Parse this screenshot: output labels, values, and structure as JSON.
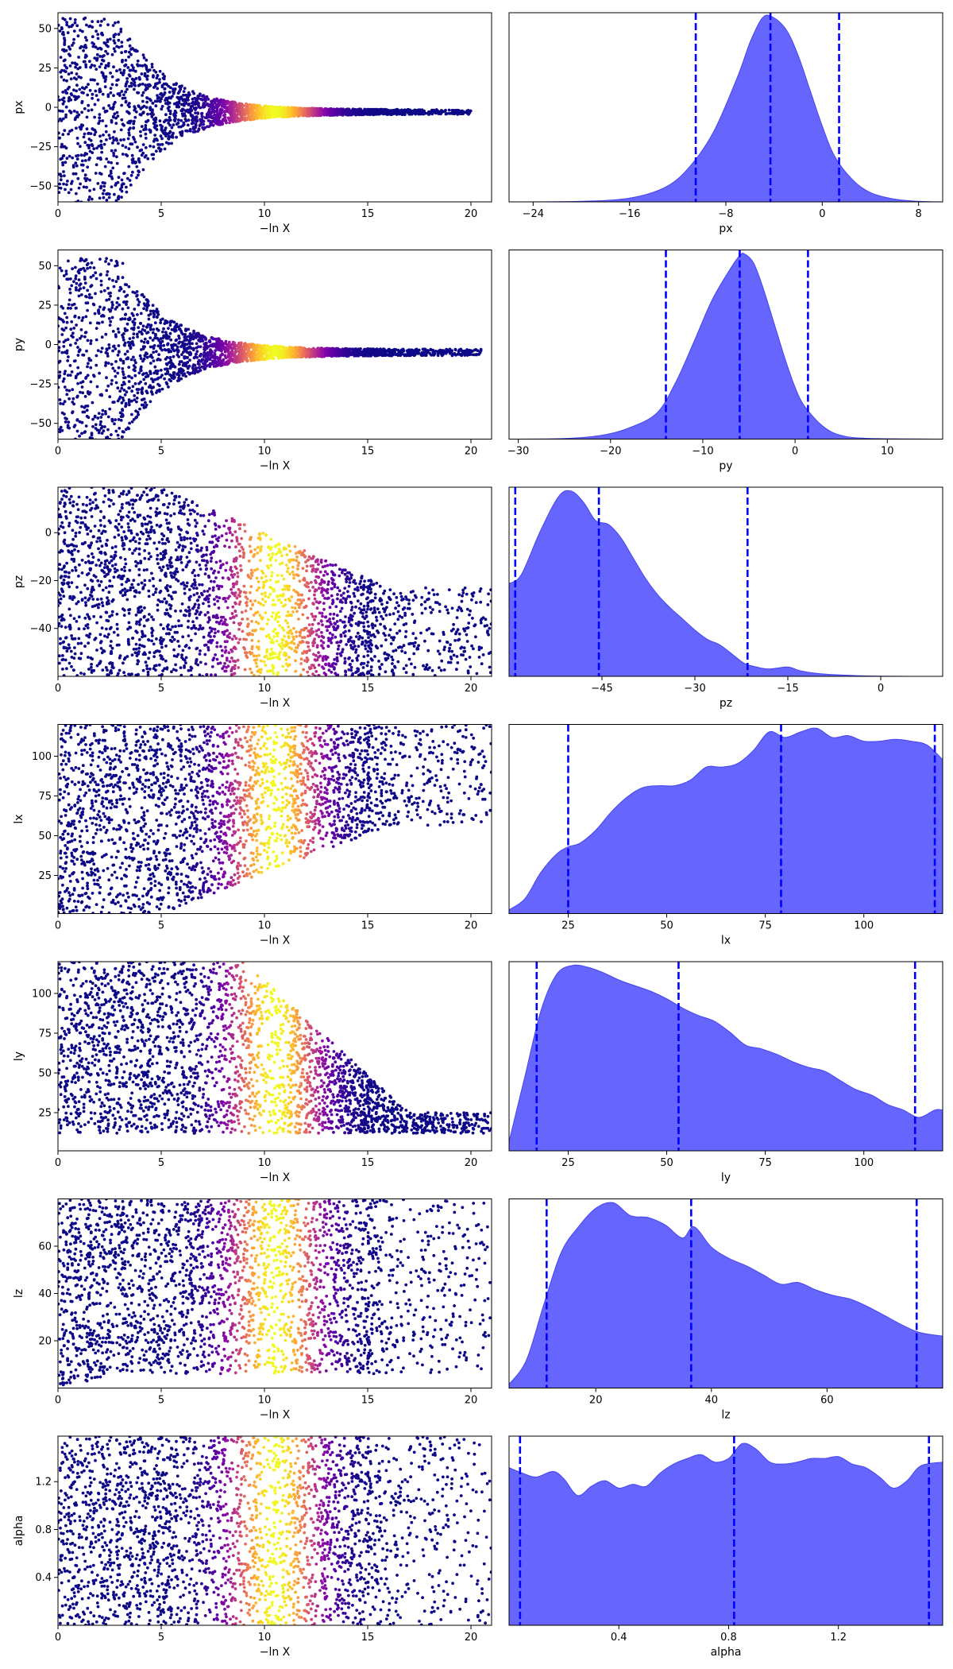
{
  "figure": {
    "xlabel_trace": "−ln X",
    "trace_colormap": [
      "#0d0887",
      "#46039f",
      "#7201a8",
      "#9c179e",
      "#bd3786",
      "#d8576b",
      "#ed7953",
      "#fb9f3a",
      "#fdca26",
      "#f0f921"
    ],
    "posterior_fill": "#6666ff",
    "posterior_line": "#0000ff"
  },
  "chart_data": [
    {
      "type": "scatter",
      "param": "px",
      "ylabel": "px",
      "xlabel": "−ln X",
      "xlim": [
        0,
        21
      ],
      "ylim": [
        -60,
        60
      ],
      "xticks": [
        0,
        5,
        10,
        15,
        20
      ],
      "yticks": [
        -50,
        -25,
        0,
        25,
        50
      ],
      "envelope": {
        "center": -3,
        "initial_halfwidth": 60,
        "shrink_start": 3,
        "shrink_rate": 0.45,
        "floor_halfwidth": 1.5,
        "max_x": 20
      },
      "color_peak_x": 10.5,
      "color_width": 2.0
    },
    {
      "type": "area",
      "param": "px",
      "xlabel": "px",
      "xlim": [
        -26,
        10
      ],
      "xticks": [
        -24,
        -16,
        -8,
        0,
        8
      ],
      "density": [
        [
          -26,
          0
        ],
        [
          -20,
          0.003
        ],
        [
          -16,
          0.02
        ],
        [
          -13,
          0.08
        ],
        [
          -11,
          0.19
        ],
        [
          -9,
          0.38
        ],
        [
          -7,
          0.68
        ],
        [
          -6,
          0.86
        ],
        [
          -5,
          0.99
        ],
        [
          -4.2,
          1.0
        ],
        [
          -3,
          0.93
        ],
        [
          -2,
          0.79
        ],
        [
          -1,
          0.6
        ],
        [
          0,
          0.41
        ],
        [
          1,
          0.25
        ],
        [
          2.5,
          0.12
        ],
        [
          4,
          0.05
        ],
        [
          6,
          0.015
        ],
        [
          8,
          0.003
        ],
        [
          10,
          0
        ]
      ],
      "vlines": [
        -10.5,
        -4.3,
        1.4
      ]
    },
    {
      "type": "scatter",
      "param": "py",
      "ylabel": "py",
      "xlabel": "−ln X",
      "xlim": [
        0,
        21
      ],
      "ylim": [
        -60,
        60
      ],
      "xticks": [
        0,
        5,
        10,
        15,
        20
      ],
      "yticks": [
        -50,
        -25,
        0,
        25,
        50
      ],
      "envelope": {
        "center": -5,
        "initial_halfwidth": 60,
        "shrink_start": 3,
        "shrink_rate": 0.45,
        "floor_halfwidth": 2,
        "max_x": 20.5
      },
      "color_peak_x": 10.5,
      "color_width": 2.0
    },
    {
      "type": "area",
      "param": "py",
      "xlabel": "py",
      "xlim": [
        -31,
        16
      ],
      "xticks": [
        -30,
        -20,
        -10,
        0,
        10
      ],
      "density": [
        [
          -31,
          0
        ],
        [
          -25,
          0.003
        ],
        [
          -21,
          0.02
        ],
        [
          -18,
          0.06
        ],
        [
          -15,
          0.14
        ],
        [
          -13,
          0.3
        ],
        [
          -11,
          0.52
        ],
        [
          -9,
          0.75
        ],
        [
          -7,
          0.92
        ],
        [
          -6,
          0.99
        ],
        [
          -5.5,
          1.0
        ],
        [
          -4.5,
          0.95
        ],
        [
          -3.5,
          0.82
        ],
        [
          -2,
          0.58
        ],
        [
          -1,
          0.42
        ],
        [
          0,
          0.28
        ],
        [
          1,
          0.18
        ],
        [
          3,
          0.07
        ],
        [
          5,
          0.02
        ],
        [
          8,
          0.004
        ],
        [
          16,
          0
        ]
      ],
      "vlines": [
        -14,
        -6,
        1.4
      ]
    },
    {
      "type": "scatter",
      "param": "pz",
      "ylabel": "pz",
      "xlabel": "−ln X",
      "xlim": [
        0,
        21
      ],
      "ylim": [
        -60,
        19
      ],
      "xticks": [
        0,
        5,
        10,
        15,
        20
      ],
      "yticks": [
        -40,
        -20,
        0
      ],
      "envelope": {
        "low": -60,
        "high_start": 19,
        "high_end": -23,
        "shrink_start": 5,
        "shrink_end": 16,
        "max_x": 21
      },
      "color_peak_x": 10.5,
      "color_width": 2.0
    },
    {
      "type": "area",
      "param": "pz",
      "xlabel": "pz",
      "xlim": [
        -60,
        10
      ],
      "xticks": [
        -45,
        -30,
        -15,
        0
      ],
      "density": [
        [
          -60,
          0.5
        ],
        [
          -58,
          0.55
        ],
        [
          -55,
          0.78
        ],
        [
          -52,
          0.97
        ],
        [
          -50,
          1.0
        ],
        [
          -48,
          0.94
        ],
        [
          -46,
          0.84
        ],
        [
          -44,
          0.82
        ],
        [
          -42,
          0.75
        ],
        [
          -40,
          0.64
        ],
        [
          -38,
          0.53
        ],
        [
          -36,
          0.44
        ],
        [
          -34,
          0.37
        ],
        [
          -32,
          0.31
        ],
        [
          -30,
          0.25
        ],
        [
          -28,
          0.2
        ],
        [
          -26,
          0.17
        ],
        [
          -24,
          0.12
        ],
        [
          -22,
          0.07
        ],
        [
          -20,
          0.05
        ],
        [
          -18,
          0.04
        ],
        [
          -15,
          0.05
        ],
        [
          -13,
          0.03
        ],
        [
          -10,
          0.015
        ],
        [
          -5,
          0.005
        ],
        [
          0,
          0.001
        ],
        [
          10,
          0
        ]
      ],
      "vlines": [
        -59,
        -45.5,
        -21.5
      ]
    },
    {
      "type": "scatter",
      "param": "lx",
      "ylabel": "lx",
      "xlabel": "−ln X",
      "xlim": [
        0,
        21
      ],
      "ylim": [
        1,
        120
      ],
      "xticks": [
        0,
        5,
        10,
        15,
        20
      ],
      "yticks": [
        25,
        50,
        75,
        100
      ],
      "envelope": {
        "high": 120,
        "low_start": 1,
        "low_end": 56,
        "shrink_start": 5,
        "shrink_end": 16,
        "max_x": 21
      },
      "color_peak_x": 10.5,
      "color_width": 2.0
    },
    {
      "type": "area",
      "param": "lx",
      "xlabel": "lx",
      "xlim": [
        10,
        120
      ],
      "xticks": [
        25,
        50,
        75,
        100
      ],
      "density": [
        [
          10,
          0.02
        ],
        [
          14,
          0.08
        ],
        [
          18,
          0.22
        ],
        [
          22,
          0.32
        ],
        [
          25,
          0.36
        ],
        [
          28,
          0.38
        ],
        [
          32,
          0.45
        ],
        [
          36,
          0.55
        ],
        [
          40,
          0.63
        ],
        [
          44,
          0.68
        ],
        [
          48,
          0.69
        ],
        [
          52,
          0.69
        ],
        [
          56,
          0.72
        ],
        [
          60,
          0.79
        ],
        [
          64,
          0.79
        ],
        [
          68,
          0.81
        ],
        [
          72,
          0.88
        ],
        [
          76,
          0.98
        ],
        [
          80,
          0.95
        ],
        [
          84,
          0.98
        ],
        [
          88,
          1.0
        ],
        [
          92,
          0.95
        ],
        [
          96,
          0.96
        ],
        [
          100,
          0.93
        ],
        [
          104,
          0.93
        ],
        [
          108,
          0.94
        ],
        [
          112,
          0.93
        ],
        [
          116,
          0.91
        ],
        [
          120,
          0.83
        ]
      ],
      "vlines": [
        25,
        79,
        118
      ]
    },
    {
      "type": "scatter",
      "param": "ly",
      "ylabel": "ly",
      "xlabel": "−ln X",
      "xlim": [
        0,
        21
      ],
      "ylim": [
        1,
        120
      ],
      "xticks": [
        0,
        5,
        10,
        15,
        20
      ],
      "yticks": [
        25,
        50,
        75,
        100
      ],
      "envelope": {
        "low": 12,
        "high_start": 120,
        "high_end": 25,
        "shrink_start": 9,
        "shrink_end": 17,
        "max_x": 21
      },
      "color_peak_x": 10.5,
      "color_width": 2.0
    },
    {
      "type": "area",
      "param": "ly",
      "xlabel": "ly",
      "xlim": [
        10,
        120
      ],
      "xticks": [
        25,
        50,
        75,
        100
      ],
      "density": [
        [
          10,
          0.05
        ],
        [
          14,
          0.4
        ],
        [
          18,
          0.75
        ],
        [
          22,
          0.95
        ],
        [
          26,
          1.0
        ],
        [
          30,
          0.99
        ],
        [
          34,
          0.96
        ],
        [
          38,
          0.92
        ],
        [
          42,
          0.89
        ],
        [
          46,
          0.86
        ],
        [
          50,
          0.82
        ],
        [
          54,
          0.77
        ],
        [
          58,
          0.73
        ],
        [
          62,
          0.7
        ],
        [
          66,
          0.64
        ],
        [
          70,
          0.57
        ],
        [
          74,
          0.55
        ],
        [
          78,
          0.52
        ],
        [
          82,
          0.48
        ],
        [
          86,
          0.45
        ],
        [
          90,
          0.43
        ],
        [
          94,
          0.38
        ],
        [
          98,
          0.33
        ],
        [
          102,
          0.3
        ],
        [
          106,
          0.25
        ],
        [
          110,
          0.22
        ],
        [
          114,
          0.18
        ],
        [
          118,
          0.22
        ],
        [
          120,
          0.22
        ]
      ],
      "vlines": [
        17,
        53,
        113
      ]
    },
    {
      "type": "scatter",
      "param": "lz",
      "ylabel": "lz",
      "xlabel": "−ln X",
      "xlim": [
        0,
        21
      ],
      "ylim": [
        0,
        80
      ],
      "xticks": [
        0,
        5,
        10,
        15,
        20
      ],
      "yticks": [
        20,
        40,
        60
      ],
      "envelope": {
        "low": 0,
        "high": 80,
        "low_start": 0,
        "low_end": 6,
        "max_x": 21
      },
      "color_peak_x": 10.5,
      "color_width": 2.0
    },
    {
      "type": "area",
      "param": "lz",
      "xlabel": "lz",
      "xlim": [
        5,
        80
      ],
      "xticks": [
        20,
        40,
        60
      ],
      "density": [
        [
          5,
          0.02
        ],
        [
          8,
          0.15
        ],
        [
          11,
          0.45
        ],
        [
          14,
          0.73
        ],
        [
          17,
          0.87
        ],
        [
          20,
          0.97
        ],
        [
          23,
          1.0
        ],
        [
          26,
          0.93
        ],
        [
          29,
          0.92
        ],
        [
          32,
          0.88
        ],
        [
          35,
          0.81
        ],
        [
          37,
          0.87
        ],
        [
          40,
          0.76
        ],
        [
          43,
          0.7
        ],
        [
          46,
          0.66
        ],
        [
          49,
          0.61
        ],
        [
          52,
          0.56
        ],
        [
          55,
          0.57
        ],
        [
          58,
          0.53
        ],
        [
          61,
          0.5
        ],
        [
          64,
          0.48
        ],
        [
          67,
          0.44
        ],
        [
          70,
          0.39
        ],
        [
          73,
          0.34
        ],
        [
          76,
          0.3
        ],
        [
          80,
          0.28
        ]
      ],
      "vlines": [
        11.5,
        36.5,
        75.5
      ]
    },
    {
      "type": "scatter",
      "param": "alpha",
      "ylabel": "alpha",
      "xlabel": "−ln X",
      "xlim": [
        0,
        21
      ],
      "ylim": [
        0.0,
        1.58
      ],
      "xticks": [
        0,
        5,
        10,
        15,
        20
      ],
      "yticks": [
        0.4,
        0.8,
        1.2
      ],
      "envelope": {
        "low": 0,
        "high": 1.58,
        "max_x": 21
      },
      "color_peak_x": 10.5,
      "color_width": 2.0
    },
    {
      "type": "area",
      "param": "alpha",
      "xlabel": "alpha",
      "xlim": [
        0.0,
        1.58
      ],
      "xticks": [
        0.4,
        0.8,
        1.2
      ],
      "density": [
        [
          0.0,
          0.85
        ],
        [
          0.05,
          0.82
        ],
        [
          0.1,
          0.8
        ],
        [
          0.16,
          0.83
        ],
        [
          0.2,
          0.79
        ],
        [
          0.25,
          0.7
        ],
        [
          0.3,
          0.75
        ],
        [
          0.35,
          0.78
        ],
        [
          0.4,
          0.74
        ],
        [
          0.45,
          0.76
        ],
        [
          0.5,
          0.75
        ],
        [
          0.55,
          0.82
        ],
        [
          0.6,
          0.87
        ],
        [
          0.65,
          0.9
        ],
        [
          0.7,
          0.92
        ],
        [
          0.75,
          0.88
        ],
        [
          0.8,
          0.9
        ],
        [
          0.85,
          0.98
        ],
        [
          0.9,
          0.95
        ],
        [
          0.95,
          0.88
        ],
        [
          1.0,
          0.87
        ],
        [
          1.05,
          0.88
        ],
        [
          1.1,
          0.9
        ],
        [
          1.15,
          0.9
        ],
        [
          1.2,
          0.91
        ],
        [
          1.25,
          0.87
        ],
        [
          1.3,
          0.85
        ],
        [
          1.35,
          0.8
        ],
        [
          1.4,
          0.74
        ],
        [
          1.45,
          0.78
        ],
        [
          1.5,
          0.86
        ],
        [
          1.58,
          0.88
        ]
      ],
      "vlines": [
        0.04,
        0.82,
        1.53
      ]
    }
  ]
}
